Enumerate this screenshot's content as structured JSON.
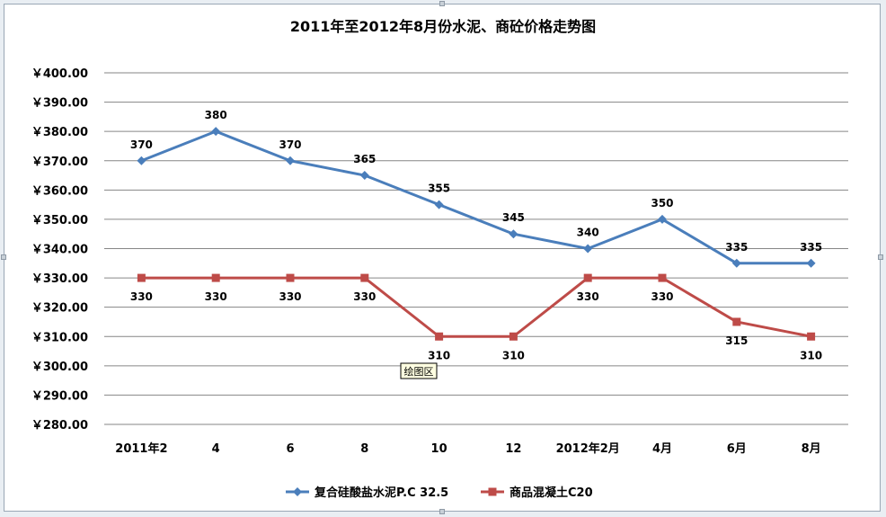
{
  "chart_data": {
    "type": "line",
    "title": "2011年至2012年8月份水泥、商砼价格走势图",
    "categories": [
      "2011年2",
      "4",
      "6",
      "8",
      "10",
      "12",
      "2012年2月",
      "4月",
      "6月",
      "8月"
    ],
    "ylim": [
      280,
      400
    ],
    "y_ticks": [
      "￥400.00",
      "￥390.00",
      "￥380.00",
      "￥370.00",
      "￥360.00",
      "￥350.00",
      "￥340.00",
      "￥330.00",
      "￥320.00",
      "￥310.00",
      "￥300.00",
      "￥290.00",
      "￥280.00"
    ],
    "grid": true,
    "legend_position": "bottom",
    "series": [
      {
        "name": "复合硅酸盐水泥P.C 32.5",
        "color": "#4a7ebb",
        "marker": "diamond",
        "values": [
          370,
          380,
          370,
          365,
          355,
          345,
          340,
          350,
          335,
          335
        ],
        "labels": [
          "370",
          "380",
          "370",
          "365",
          "355",
          "345",
          "340",
          "350",
          "335",
          "335"
        ]
      },
      {
        "name": "商品混凝土C20",
        "color": "#be4b48",
        "marker": "square",
        "values": [
          330,
          330,
          330,
          330,
          310,
          310,
          330,
          330,
          315,
          310
        ],
        "labels": [
          "330",
          "330",
          "330",
          "330",
          "310",
          "310",
          "330",
          "330",
          "315",
          "310"
        ]
      }
    ],
    "tooltip": "绘图区"
  }
}
